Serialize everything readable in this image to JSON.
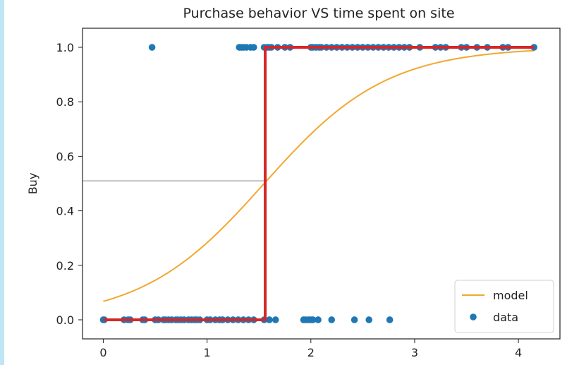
{
  "chart_data": {
    "type": "scatter",
    "title": "Purchase behavior VS time spent on site",
    "xlabel": "",
    "ylabel": "Buy",
    "xlim": [
      -0.2,
      4.4
    ],
    "ylim": [
      -0.07,
      1.07
    ],
    "xticks": [
      0,
      1,
      2,
      3,
      4
    ],
    "yticks": [
      0.0,
      0.2,
      0.4,
      0.6,
      0.8,
      1.0
    ],
    "grid": false,
    "legend_position": "bottom-right",
    "legend": [
      "model",
      "data"
    ],
    "colors": {
      "data": "#1f77b4",
      "model": "#f0a830",
      "step": "#d62728",
      "guide": "#808080"
    },
    "series": [
      {
        "name": "data",
        "kind": "scatter",
        "points": [
          [
            0.0,
            0
          ],
          [
            0.01,
            0
          ],
          [
            0.2,
            0
          ],
          [
            0.24,
            0
          ],
          [
            0.26,
            0
          ],
          [
            0.38,
            0
          ],
          [
            0.4,
            0
          ],
          [
            0.5,
            0
          ],
          [
            0.53,
            0
          ],
          [
            0.58,
            0
          ],
          [
            0.6,
            0
          ],
          [
            0.63,
            0
          ],
          [
            0.66,
            0
          ],
          [
            0.7,
            0
          ],
          [
            0.72,
            0
          ],
          [
            0.75,
            0
          ],
          [
            0.78,
            0
          ],
          [
            0.82,
            0
          ],
          [
            0.85,
            0
          ],
          [
            0.88,
            0
          ],
          [
            0.9,
            0
          ],
          [
            0.93,
            0
          ],
          [
            1.0,
            0
          ],
          [
            1.03,
            0
          ],
          [
            1.08,
            0
          ],
          [
            1.12,
            0
          ],
          [
            1.15,
            0
          ],
          [
            1.2,
            0
          ],
          [
            1.25,
            0
          ],
          [
            1.3,
            0
          ],
          [
            1.35,
            0
          ],
          [
            1.4,
            0
          ],
          [
            1.45,
            0
          ],
          [
            1.55,
            0
          ],
          [
            1.6,
            0
          ],
          [
            1.66,
            0
          ],
          [
            1.93,
            0
          ],
          [
            1.95,
            0
          ],
          [
            1.98,
            0
          ],
          [
            2.0,
            0
          ],
          [
            2.02,
            0
          ],
          [
            2.07,
            0
          ],
          [
            2.2,
            0
          ],
          [
            2.42,
            0
          ],
          [
            2.56,
            0
          ],
          [
            2.76,
            0
          ],
          [
            0.47,
            1
          ],
          [
            1.31,
            1
          ],
          [
            1.33,
            1
          ],
          [
            1.35,
            1
          ],
          [
            1.38,
            1
          ],
          [
            1.42,
            1
          ],
          [
            1.45,
            1
          ],
          [
            1.55,
            1
          ],
          [
            1.58,
            1
          ],
          [
            1.6,
            1
          ],
          [
            1.62,
            1
          ],
          [
            1.68,
            1
          ],
          [
            1.75,
            1
          ],
          [
            1.8,
            1
          ],
          [
            2.0,
            1
          ],
          [
            2.02,
            1
          ],
          [
            2.05,
            1
          ],
          [
            2.08,
            1
          ],
          [
            2.1,
            1
          ],
          [
            2.15,
            1
          ],
          [
            2.2,
            1
          ],
          [
            2.25,
            1
          ],
          [
            2.3,
            1
          ],
          [
            2.35,
            1
          ],
          [
            2.4,
            1
          ],
          [
            2.45,
            1
          ],
          [
            2.5,
            1
          ],
          [
            2.55,
            1
          ],
          [
            2.6,
            1
          ],
          [
            2.65,
            1
          ],
          [
            2.7,
            1
          ],
          [
            2.75,
            1
          ],
          [
            2.8,
            1
          ],
          [
            2.85,
            1
          ],
          [
            2.9,
            1
          ],
          [
            2.95,
            1
          ],
          [
            3.05,
            1
          ],
          [
            3.2,
            1
          ],
          [
            3.25,
            1
          ],
          [
            3.3,
            1
          ],
          [
            3.45,
            1
          ],
          [
            3.5,
            1
          ],
          [
            3.6,
            1
          ],
          [
            3.7,
            1
          ],
          [
            3.85,
            1
          ],
          [
            3.9,
            1
          ],
          [
            4.15,
            1
          ]
        ]
      },
      {
        "name": "model",
        "kind": "logistic-line",
        "x_range": [
          0,
          4.15
        ],
        "midpoint": 1.55,
        "slope": 1.69
      }
    ],
    "threshold_step": {
      "x_split": 1.56,
      "x_range": [
        0,
        4.15
      ],
      "low": 0,
      "high": 1
    },
    "guide_line": {
      "y": 0.51,
      "x_to": 1.56
    }
  }
}
